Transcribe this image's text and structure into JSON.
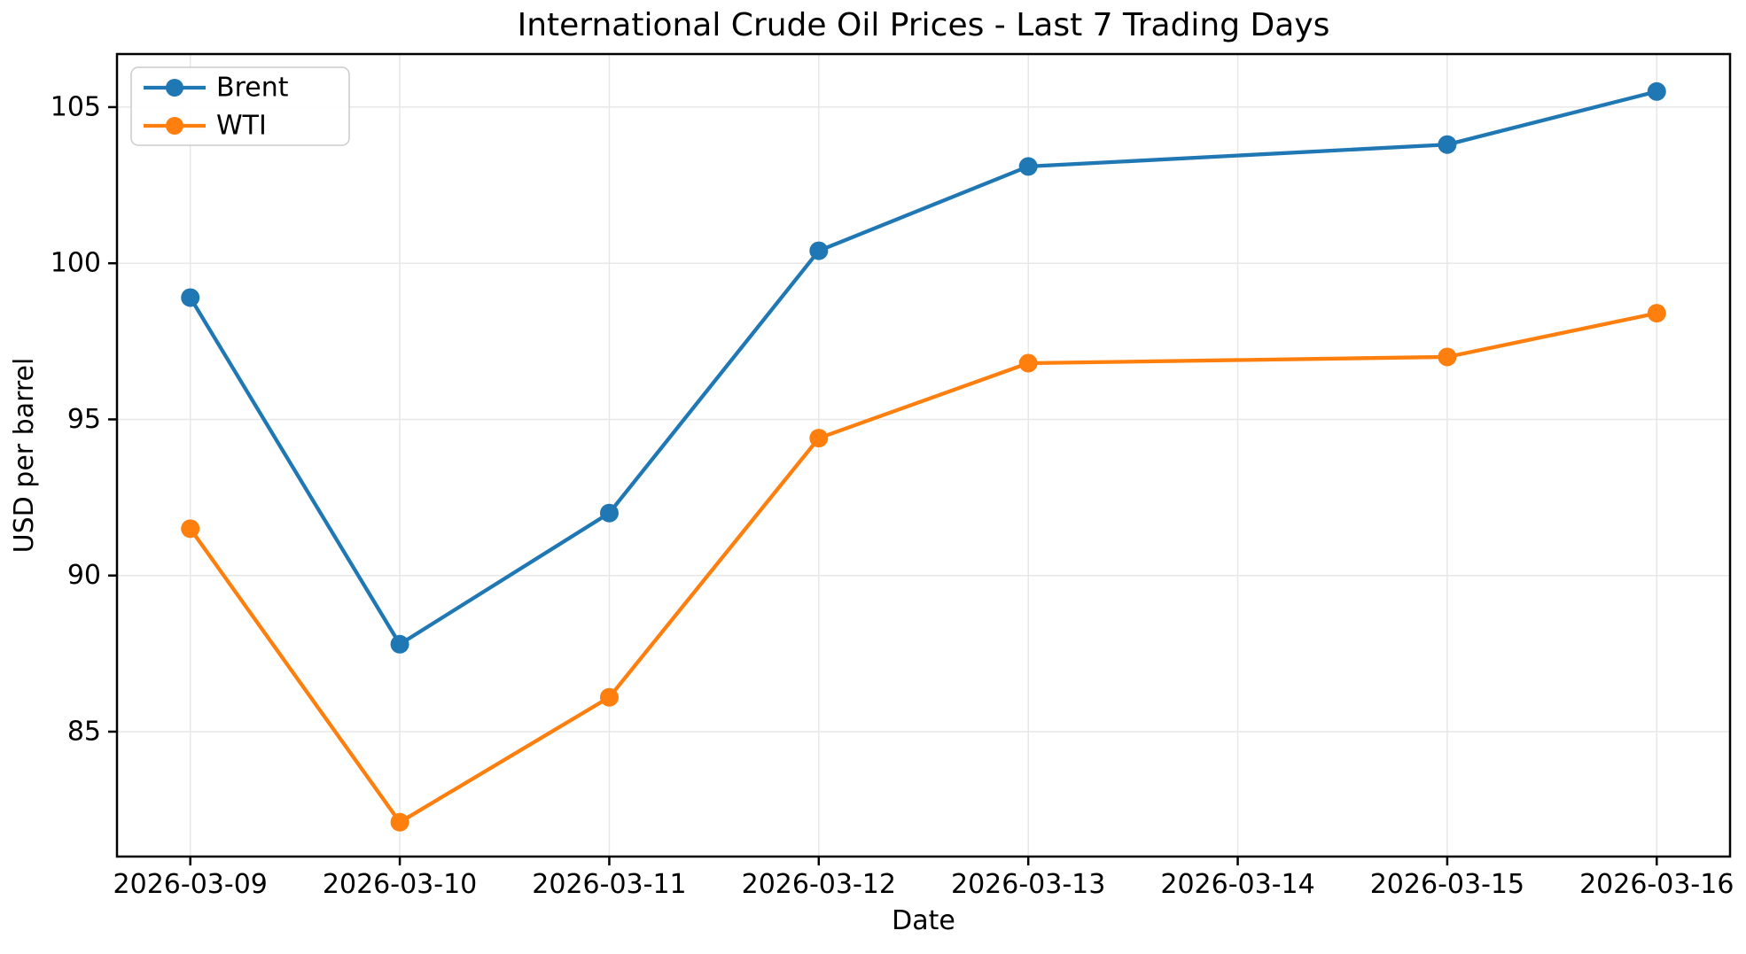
{
  "chart_data": {
    "type": "line",
    "title": "International Crude Oil Prices - Last 7 Trading Days",
    "xlabel": "Date",
    "ylabel": "USD per barrel",
    "x_tick_labels": [
      "2026-03-09",
      "2026-03-10",
      "2026-03-11",
      "2026-03-12",
      "2026-03-13",
      "2026-03-14",
      "2026-03-15",
      "2026-03-16"
    ],
    "y_ticks": [
      85,
      90,
      95,
      100,
      105
    ],
    "ylim": [
      81.0,
      106.7
    ],
    "xlim_index_range": [
      -0.35,
      7.35
    ],
    "grid": true,
    "legend": {
      "position": "upper left",
      "entries": [
        "Brent",
        "WTI"
      ]
    },
    "series": [
      {
        "name": "Brent",
        "color": "#1f77b4",
        "points": [
          [
            "2026-03-09",
            98.9
          ],
          [
            "2026-03-10",
            87.8
          ],
          [
            "2026-03-11",
            92.0
          ],
          [
            "2026-03-12",
            100.4
          ],
          [
            "2026-03-13",
            103.1
          ],
          [
            "2026-03-15",
            103.8
          ],
          [
            "2026-03-16",
            105.5
          ]
        ]
      },
      {
        "name": "WTI",
        "color": "#ff7f0e",
        "points": [
          [
            "2026-03-09",
            91.5
          ],
          [
            "2026-03-10",
            82.1
          ],
          [
            "2026-03-11",
            86.1
          ],
          [
            "2026-03-12",
            94.4
          ],
          [
            "2026-03-13",
            96.8
          ],
          [
            "2026-03-15",
            97.0
          ],
          [
            "2026-03-16",
            98.4
          ]
        ]
      }
    ],
    "colors": {
      "grid": "#e7e7e7",
      "axis": "#000000",
      "legend_border": "#cccccc",
      "legend_background": "rgba(255,255,255,0.9)"
    }
  }
}
